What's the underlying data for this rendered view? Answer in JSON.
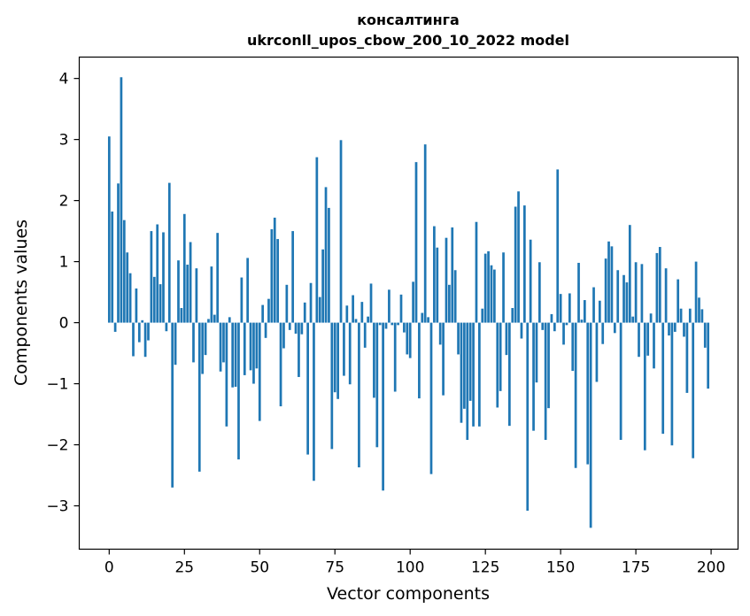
{
  "chart_data": {
    "type": "bar",
    "title_line1": "консалтинга",
    "title_line2": "ukrconll_upos_cbow_200_10_2022 model",
    "xlabel": "Vector components",
    "ylabel": "Components values",
    "xlim": [
      -9.95,
      208.95
    ],
    "ylim": [
      -3.71,
      4.35
    ],
    "xticks": [
      0,
      25,
      50,
      75,
      100,
      125,
      150,
      175,
      200
    ],
    "yticks": [
      -3,
      -2,
      -1,
      0,
      1,
      2,
      3,
      4
    ],
    "ytick_labels": [
      "−3",
      "−2",
      "−1",
      "0",
      "1",
      "2",
      "3",
      "4"
    ],
    "grid": false,
    "bar_color": "#1f77b4",
    "values": [
      3.05,
      1.82,
      -0.15,
      2.28,
      4.02,
      1.68,
      1.15,
      0.81,
      -0.55,
      0.56,
      -0.32,
      0.04,
      -0.56,
      -0.29,
      1.5,
      0.75,
      1.61,
      0.63,
      1.48,
      -0.14,
      2.29,
      -2.7,
      -0.69,
      1.02,
      0.24,
      1.78,
      0.95,
      1.32,
      -0.65,
      0.89,
      -2.44,
      -0.84,
      -0.53,
      0.06,
      0.92,
      0.13,
      1.47,
      -0.8,
      -0.65,
      -1.7,
      0.09,
      -1.06,
      -1.05,
      -2.24,
      0.74,
      -0.86,
      1.06,
      -0.78,
      -1.0,
      -0.75,
      -1.61,
      0.29,
      -0.25,
      0.39,
      1.53,
      1.72,
      1.37,
      -1.37,
      -0.42,
      0.62,
      -0.12,
      1.5,
      -0.18,
      -0.89,
      -0.19,
      0.33,
      -2.16,
      0.65,
      -2.59,
      2.71,
      0.42,
      1.2,
      2.22,
      1.88,
      -2.07,
      -1.14,
      -1.25,
      2.99,
      -0.87,
      0.28,
      -1.01,
      0.45,
      0.06,
      -2.37,
      0.34,
      -0.41,
      0.1,
      0.64,
      -1.23,
      -2.04,
      -0.04,
      -2.75,
      -0.1,
      0.54,
      -0.04,
      -1.13,
      -0.04,
      0.46,
      -0.16,
      -0.52,
      -0.58,
      0.67,
      2.63,
      -1.24,
      0.16,
      2.92,
      0.09,
      -2.48,
      1.58,
      1.23,
      -0.36,
      -1.19,
      1.39,
      0.62,
      1.56,
      0.86,
      -0.52,
      -1.64,
      -1.41,
      -1.92,
      -1.28,
      -1.7,
      1.65,
      -1.7,
      0.23,
      1.13,
      1.17,
      0.94,
      0.87,
      -1.39,
      -1.12,
      1.15,
      -0.53,
      -1.69,
      0.24,
      1.9,
      2.15,
      -0.26,
      1.92,
      -3.08,
      1.36,
      -1.77,
      -0.98,
      0.99,
      -0.12,
      -1.92,
      -1.4,
      0.14,
      -0.14,
      2.51,
      0.47,
      -0.36,
      -0.04,
      0.48,
      -0.79,
      -2.38,
      0.98,
      0.05,
      0.37,
      -2.32,
      -3.36,
      0.58,
      -0.97,
      0.36,
      -0.35,
      1.05,
      1.33,
      1.25,
      -0.17,
      0.86,
      -1.92,
      0.78,
      0.66,
      1.6,
      0.1,
      0.99,
      -0.56,
      0.96,
      -2.09,
      -0.54,
      0.15,
      -0.75,
      1.14,
      1.24,
      -1.82,
      0.89,
      -0.21,
      -2.01,
      -0.15,
      0.71,
      0.23,
      -0.23,
      -1.15,
      0.23,
      -2.22,
      1.0,
      0.41,
      0.22,
      -0.41,
      -1.08
    ]
  }
}
